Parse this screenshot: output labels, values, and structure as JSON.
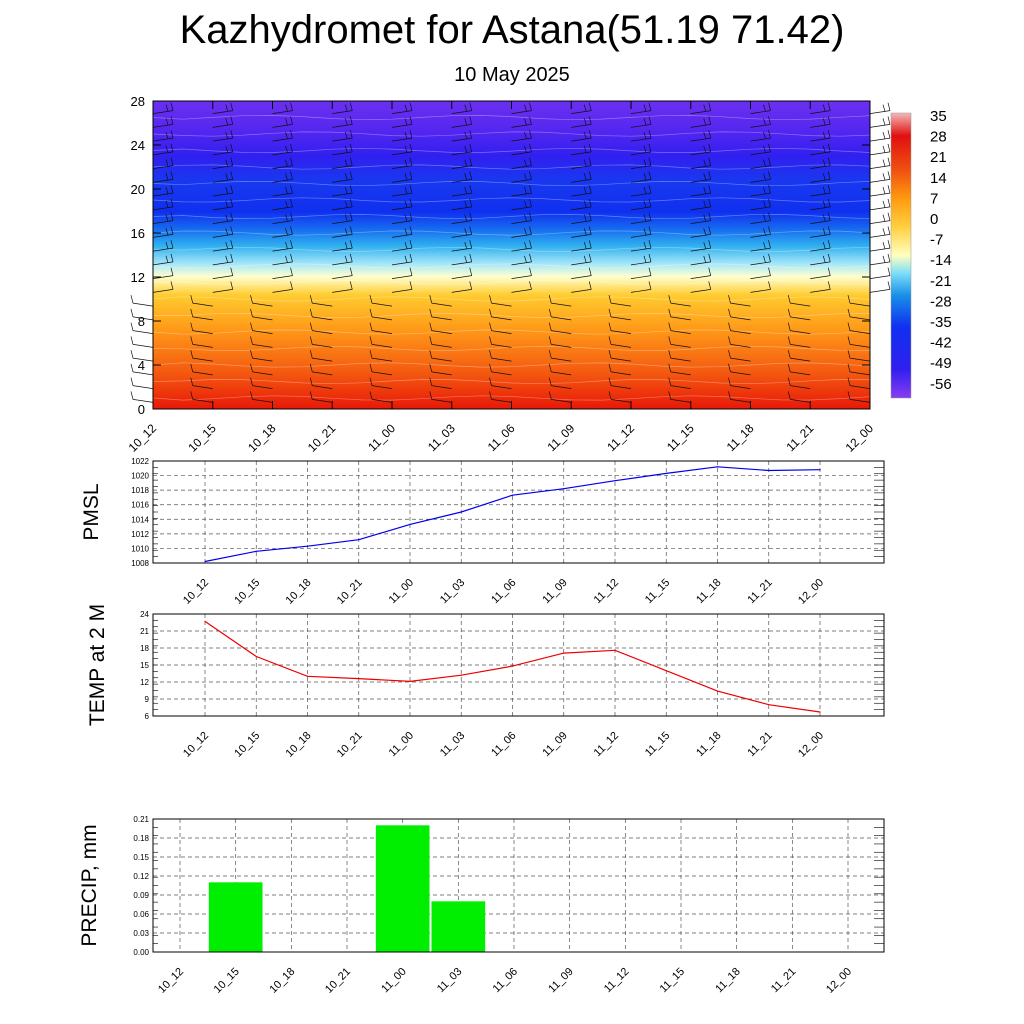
{
  "header": {
    "title": "Kazhydromet for Astana(51.19 71.42)",
    "subtitle": "10 May 2025"
  },
  "colors": {
    "pmsl_line": "#0000ee",
    "temp_line": "#ee0000",
    "precip_bar": "#00ee00",
    "grid": "#555555"
  },
  "colorbar": {
    "labels": [
      "35",
      "28",
      "21",
      "14",
      "7",
      "0",
      "-7",
      "-14",
      "-21",
      "-28",
      "-35",
      "-42",
      "-49",
      "-56"
    ],
    "stops": [
      "#f4b8b8",
      "#e01010",
      "#f05010",
      "#ff9a10",
      "#ffc830",
      "#ffffc0",
      "#50d0f0",
      "#1890e8",
      "#1030f0",
      "#3020f0",
      "#8a3cf0"
    ]
  },
  "chart_data": [
    {
      "type": "heatmap",
      "name": "upper",
      "description_hidden": "",
      "categories": [
        "10_12",
        "10_15",
        "10_18",
        "10_21",
        "11_00",
        "11_03",
        "11_06",
        "11_09",
        "11_12",
        "11_15",
        "11_18",
        "11_21",
        "12_00"
      ],
      "ylim": [
        0,
        28
      ],
      "yticks": [
        "0",
        "4",
        "8",
        "12",
        "16",
        "20",
        "24",
        "28"
      ]
    },
    {
      "type": "line",
      "ylabel": "PMSL",
      "categories": [
        "10_12",
        "10_15",
        "10_18",
        "10_21",
        "11_00",
        "11_03",
        "11_06",
        "11_09",
        "11_12",
        "11_15",
        "11_18",
        "11_21",
        "12_00"
      ],
      "series": [
        {
          "values": [
            1008.2,
            1009.6,
            1010.3,
            1011.2,
            1013.3,
            1015.0,
            1017.3,
            1018.2,
            1019.3,
            1020.3,
            1021.2,
            1020.7,
            1020.8
          ]
        }
      ],
      "ylim": [
        1008,
        1022
      ],
      "yticks": [
        "1008",
        "1010",
        "1012",
        "1014",
        "1016",
        "1018",
        "1020",
        "1022"
      ]
    },
    {
      "type": "line",
      "ylabel": "TEMP at 2 M",
      "categories": [
        "10_12",
        "10_15",
        "10_18",
        "10_21",
        "11_00",
        "11_03",
        "11_06",
        "11_09",
        "11_12",
        "11_15",
        "11_18",
        "11_21",
        "12_00"
      ],
      "series": [
        {
          "values": [
            22.7,
            16.5,
            13.0,
            12.6,
            12.1,
            13.2,
            14.8,
            17.1,
            17.6,
            14.0,
            10.4,
            8.0,
            6.7
          ]
        }
      ],
      "ylim": [
        6,
        24
      ],
      "yticks": [
        "6",
        "9",
        "12",
        "15",
        "18",
        "21",
        "24"
      ]
    },
    {
      "type": "bar",
      "ylabel": "PRECIP, mm",
      "categories": [
        "10_12",
        "10_15",
        "10_18",
        "10_21",
        "11_00",
        "11_03",
        "11_06",
        "11_09",
        "11_12",
        "11_15",
        "11_18",
        "11_21",
        "12_00"
      ],
      "values": [
        0,
        0.11,
        0,
        0,
        0.2,
        0.08,
        0,
        0,
        0,
        0,
        0,
        0,
        0
      ],
      "ylim": [
        0,
        0.21
      ],
      "yticks": [
        "0.00",
        "0.03",
        "0.06",
        "0.09",
        "0.12",
        "0.15",
        "0.18",
        "0.21"
      ]
    }
  ]
}
